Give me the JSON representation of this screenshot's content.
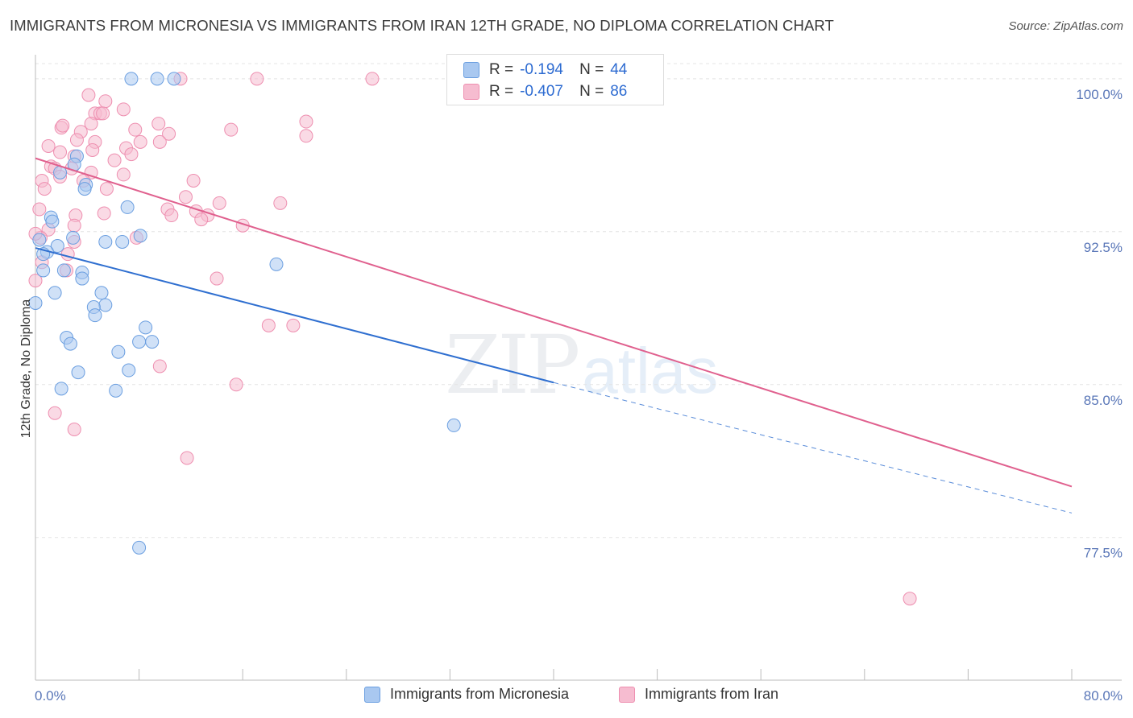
{
  "header": {
    "title": "IMMIGRANTS FROM MICRONESIA VS IMMIGRANTS FROM IRAN 12TH GRADE, NO DIPLOMA CORRELATION CHART",
    "source": "Source: ZipAtlas.com"
  },
  "legend": {
    "r_label": "R =",
    "n_label": "N =",
    "series1": {
      "r": "-0.194",
      "n": "44"
    },
    "series2": {
      "r": "-0.407",
      "n": "86"
    }
  },
  "watermark": {
    "zip": "ZIP",
    "atlas": "atlas"
  },
  "colors": {
    "micronesia_fill": "#a9c8f0",
    "micronesia_stroke": "#6a9ee0",
    "micronesia_line": "#2f6fd0",
    "iran_fill": "#f6bcd0",
    "iran_stroke": "#ee8fb0",
    "iran_line": "#e0608e",
    "tick_text": "#5a77b8"
  },
  "chart_data": {
    "type": "scatter",
    "title": "IMMIGRANTS FROM MICRONESIA VS IMMIGRANTS FROM IRAN 12TH GRADE, NO DIPLOMA CORRELATION CHART",
    "xlabel": "",
    "ylabel": "12th Grade, No Diploma",
    "xlim": [
      0,
      80
    ],
    "ylim": [
      70.5,
      101.1
    ],
    "x_tick_labels": [
      "0.0%",
      "80.0%"
    ],
    "y_ticks": [
      77.5,
      85.0,
      92.5,
      100.0
    ],
    "y_tick_labels": [
      "77.5%",
      "85.0%",
      "92.5%",
      "100.0%"
    ],
    "series": [
      {
        "name": "Immigrants from Micronesia",
        "r": -0.194,
        "n": 44,
        "trend": {
          "x0": 0.0,
          "y0": 91.7,
          "x1": 40.0,
          "y1": 85.1,
          "dash_x1": 80.0,
          "dash_y1": 78.7
        },
        "points": [
          [
            7.4,
            100.0
          ],
          [
            9.4,
            100.0
          ],
          [
            10.7,
            100.0
          ],
          [
            3.2,
            96.2
          ],
          [
            3.0,
            95.8
          ],
          [
            1.9,
            95.4
          ],
          [
            3.9,
            94.8
          ],
          [
            3.8,
            94.6
          ],
          [
            7.1,
            93.7
          ],
          [
            1.2,
            93.2
          ],
          [
            1.3,
            93.0
          ],
          [
            8.1,
            92.3
          ],
          [
            2.9,
            92.2
          ],
          [
            5.4,
            92.0
          ],
          [
            6.7,
            92.0
          ],
          [
            0.3,
            92.1
          ],
          [
            1.7,
            91.8
          ],
          [
            0.9,
            91.5
          ],
          [
            0.6,
            91.4
          ],
          [
            18.6,
            90.9
          ],
          [
            0.6,
            90.6
          ],
          [
            2.2,
            90.6
          ],
          [
            3.6,
            90.5
          ],
          [
            3.6,
            90.2
          ],
          [
            1.5,
            89.5
          ],
          [
            5.1,
            89.5
          ],
          [
            5.4,
            88.9
          ],
          [
            4.5,
            88.8
          ],
          [
            4.6,
            88.4
          ],
          [
            8.5,
            87.8
          ],
          [
            2.4,
            87.3
          ],
          [
            2.7,
            87.0
          ],
          [
            8.0,
            87.1
          ],
          [
            9.0,
            87.1
          ],
          [
            6.4,
            86.6
          ],
          [
            3.3,
            85.6
          ],
          [
            7.2,
            85.7
          ],
          [
            2.0,
            84.8
          ],
          [
            6.2,
            84.7
          ],
          [
            32.3,
            83.0
          ],
          [
            8.0,
            77.0
          ],
          [
            0.0,
            89.0
          ]
        ]
      },
      {
        "name": "Immigrants from Iran",
        "r": -0.407,
        "n": 86,
        "trend": {
          "x0": 0.0,
          "y0": 96.1,
          "x1": 80.0,
          "y1": 80.0
        },
        "points": [
          [
            11.2,
            100.0
          ],
          [
            17.1,
            100.0
          ],
          [
            26.0,
            100.0
          ],
          [
            4.1,
            99.2
          ],
          [
            5.4,
            98.9
          ],
          [
            6.8,
            98.5
          ],
          [
            4.6,
            98.3
          ],
          [
            5.0,
            98.3
          ],
          [
            5.2,
            98.3
          ],
          [
            20.9,
            97.9
          ],
          [
            4.3,
            97.8
          ],
          [
            9.5,
            97.8
          ],
          [
            2.0,
            97.6
          ],
          [
            2.1,
            97.7
          ],
          [
            3.5,
            97.4
          ],
          [
            7.7,
            97.5
          ],
          [
            15.1,
            97.5
          ],
          [
            10.3,
            97.3
          ],
          [
            20.9,
            97.2
          ],
          [
            3.2,
            97.0
          ],
          [
            4.6,
            96.9
          ],
          [
            8.1,
            96.9
          ],
          [
            9.6,
            96.9
          ],
          [
            1.0,
            96.7
          ],
          [
            7.0,
            96.6
          ],
          [
            4.4,
            96.5
          ],
          [
            1.9,
            96.4
          ],
          [
            7.4,
            96.3
          ],
          [
            3.0,
            96.2
          ],
          [
            6.1,
            96.0
          ],
          [
            1.2,
            95.7
          ],
          [
            1.5,
            95.6
          ],
          [
            2.8,
            95.6
          ],
          [
            4.3,
            95.4
          ],
          [
            6.8,
            95.3
          ],
          [
            1.9,
            95.2
          ],
          [
            3.7,
            95.0
          ],
          [
            12.2,
            95.0
          ],
          [
            0.5,
            95.0
          ],
          [
            0.7,
            94.6
          ],
          [
            5.5,
            94.6
          ],
          [
            11.6,
            94.2
          ],
          [
            18.9,
            93.9
          ],
          [
            14.2,
            93.9
          ],
          [
            10.2,
            93.6
          ],
          [
            12.4,
            93.5
          ],
          [
            5.3,
            93.4
          ],
          [
            3.1,
            93.3
          ],
          [
            13.3,
            93.3
          ],
          [
            10.5,
            93.3
          ],
          [
            12.8,
            93.1
          ],
          [
            0.3,
            93.6
          ],
          [
            3.0,
            92.8
          ],
          [
            16.0,
            92.8
          ],
          [
            1.0,
            92.6
          ],
          [
            7.8,
            92.2
          ],
          [
            3.0,
            92.0
          ],
          [
            0.4,
            92.2
          ],
          [
            2.5,
            91.4
          ],
          [
            0.5,
            91.0
          ],
          [
            2.4,
            90.6
          ],
          [
            14.0,
            90.2
          ],
          [
            18.0,
            87.9
          ],
          [
            19.9,
            87.9
          ],
          [
            9.6,
            85.9
          ],
          [
            15.5,
            85.0
          ],
          [
            1.5,
            83.6
          ],
          [
            3.0,
            82.8
          ],
          [
            11.7,
            81.4
          ],
          [
            67.5,
            74.5
          ],
          [
            0.0,
            92.4
          ],
          [
            0.0,
            90.1
          ]
        ]
      }
    ]
  },
  "bottom_legend": {
    "series1": "Immigrants from Micronesia",
    "series2": "Immigrants from Iran"
  }
}
